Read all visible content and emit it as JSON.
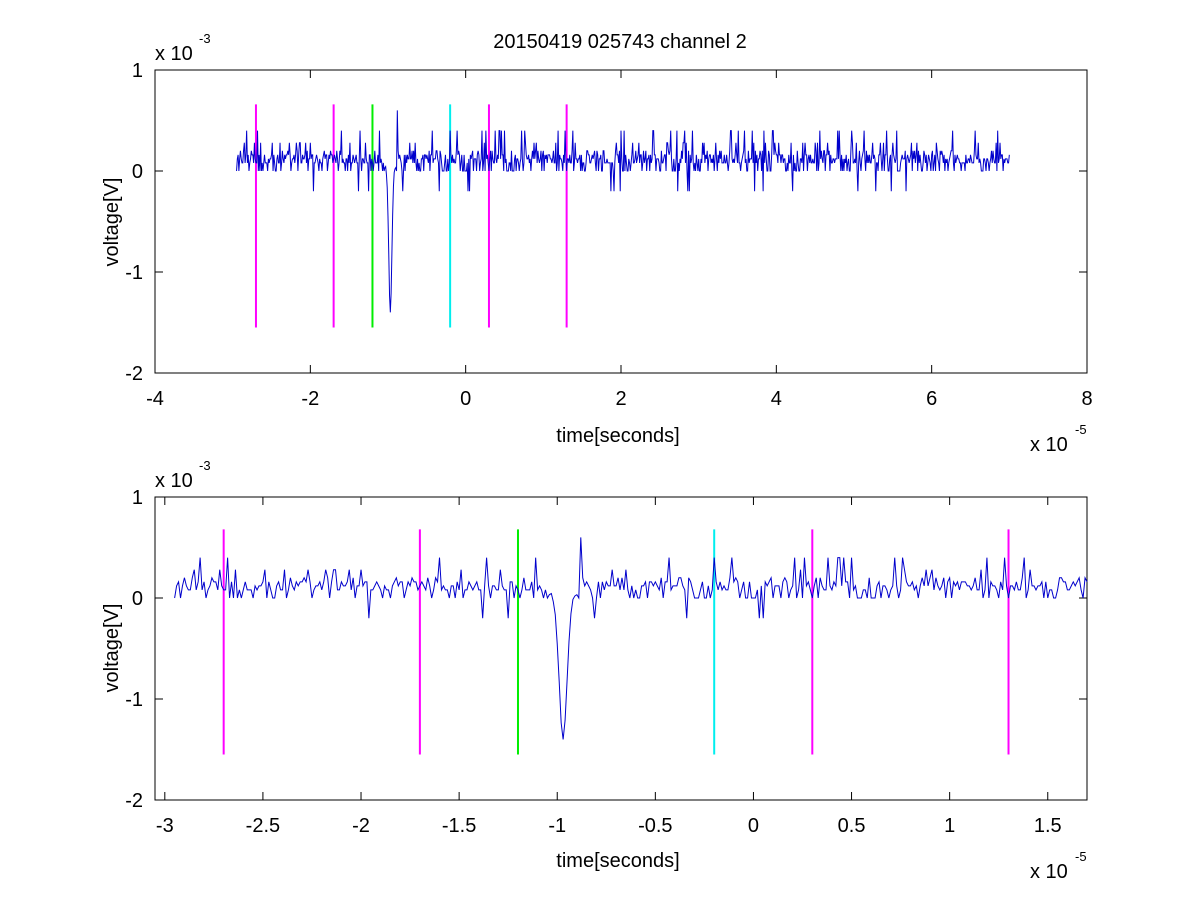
{
  "figure_title": "20150419 025743 channel 2",
  "colors": {
    "signal": "#0000cc",
    "marker_magenta": "#ff00ff",
    "marker_green": "#00ee00",
    "marker_cyan": "#00eeee",
    "axis": "#000000"
  },
  "chart_data": [
    {
      "type": "line",
      "title": "20150419 025743 channel 2",
      "xlabel": "time[seconds]",
      "ylabel": "voltage[V]",
      "x_exponent_label": "x 10",
      "x_exponent": "-5",
      "y_exponent_label": "x 10",
      "y_exponent": "-3",
      "xlim": [
        -4,
        8
      ],
      "ylim": [
        -2,
        1
      ],
      "xticks": [
        -4,
        -2,
        0,
        2,
        4,
        6,
        8
      ],
      "xtick_labels": [
        "-4",
        "-2",
        "0",
        "2",
        "4",
        "6",
        "8"
      ],
      "yticks": [
        -2,
        -1,
        0,
        1
      ],
      "ytick_labels": [
        "-2",
        "-1",
        "0",
        "1"
      ],
      "signal": {
        "x_range": [
          -2.95,
          7.0
        ],
        "baseline": 0.12,
        "noise_levels": [
          0.0,
          0.08,
          0.12,
          0.16,
          0.2,
          0.28,
          0.4,
          -0.2
        ],
        "spike": {
          "x": -0.97,
          "min": -1.4
        },
        "peak": {
          "x": -0.88,
          "max": 0.6
        }
      },
      "markers": [
        {
          "x": -2.7,
          "ymin": -1.55,
          "ymax": 0.66,
          "color": "magenta"
        },
        {
          "x": -1.7,
          "ymin": -1.55,
          "ymax": 0.66,
          "color": "magenta"
        },
        {
          "x": -1.2,
          "ymin": -1.55,
          "ymax": 0.66,
          "color": "green"
        },
        {
          "x": -0.2,
          "ymin": -1.55,
          "ymax": 0.66,
          "color": "cyan"
        },
        {
          "x": 0.3,
          "ymin": -1.55,
          "ymax": 0.66,
          "color": "magenta"
        },
        {
          "x": 1.3,
          "ymin": -1.55,
          "ymax": 0.66,
          "color": "magenta"
        }
      ],
      "grid": false
    },
    {
      "type": "line",
      "title": "",
      "xlabel": "time[seconds]",
      "ylabel": "voltage[V]",
      "x_exponent_label": "x 10",
      "x_exponent": "-5",
      "y_exponent_label": "x 10",
      "y_exponent": "-3",
      "xlim": [
        -3.05,
        1.7
      ],
      "ylim": [
        -2,
        1
      ],
      "xticks": [
        -3,
        -2.5,
        -2,
        -1.5,
        -1,
        -0.5,
        0,
        0.5,
        1,
        1.5
      ],
      "xtick_labels": [
        "-3",
        "-2.5",
        "-2",
        "-1.5",
        "-1",
        "-0.5",
        "0",
        "0.5",
        "1",
        "1.5"
      ],
      "yticks": [
        -2,
        -1,
        0,
        1
      ],
      "ytick_labels": [
        "-2",
        "-1",
        "0",
        "1"
      ],
      "signal": {
        "x_range": [
          -2.95,
          1.7
        ],
        "baseline": 0.12,
        "noise_levels": [
          0.0,
          0.08,
          0.12,
          0.16,
          0.2,
          0.28,
          0.4,
          -0.2
        ],
        "spike": {
          "x": -0.97,
          "min": -1.4
        },
        "peak": {
          "x": -0.88,
          "max": 0.6
        }
      },
      "markers": [
        {
          "x": -2.7,
          "ymin": -1.55,
          "ymax": 0.68,
          "color": "magenta"
        },
        {
          "x": -1.7,
          "ymin": -1.55,
          "ymax": 0.68,
          "color": "magenta"
        },
        {
          "x": -1.2,
          "ymin": -1.55,
          "ymax": 0.68,
          "color": "green"
        },
        {
          "x": -0.2,
          "ymin": -1.55,
          "ymax": 0.68,
          "color": "cyan"
        },
        {
          "x": 0.3,
          "ymin": -1.55,
          "ymax": 0.68,
          "color": "magenta"
        },
        {
          "x": 1.3,
          "ymin": -1.55,
          "ymax": 0.68,
          "color": "magenta"
        }
      ],
      "grid": false
    }
  ]
}
